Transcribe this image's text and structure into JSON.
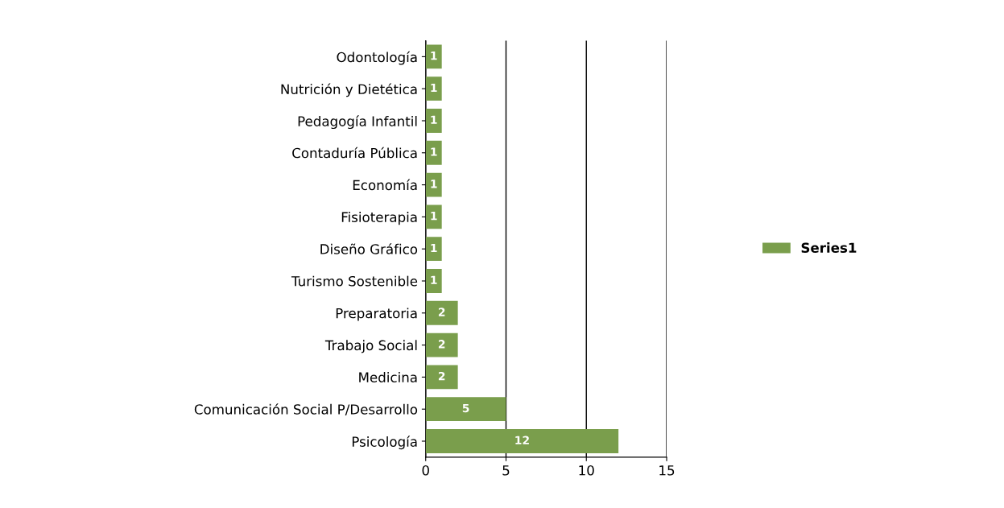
{
  "chart_data": {
    "type": "bar",
    "orientation": "horizontal",
    "categories": [
      "Odontología",
      "Nutrición y Dietética",
      "Pedagogía Infantil",
      "Contaduría Pública",
      "Economía",
      "Fisioterapia",
      "Diseño Gráfico",
      "Turismo Sostenible",
      "Preparatoria",
      "Trabajo Social",
      "Medicina",
      "Comunicación Social P/Desarrollo",
      "Psicología"
    ],
    "series": [
      {
        "name": "Series1",
        "color": "#7a9e4c",
        "values": [
          1,
          1,
          1,
          1,
          1,
          1,
          1,
          1,
          2,
          2,
          2,
          5,
          12
        ]
      }
    ],
    "xlim": [
      0,
      15
    ],
    "xticks": [
      0,
      5,
      10,
      15
    ],
    "grid": "x",
    "legend": "right",
    "data_labels": true
  }
}
